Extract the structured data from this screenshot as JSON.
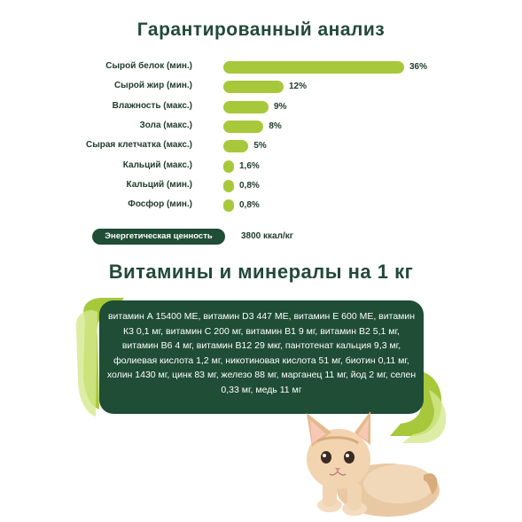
{
  "header": {
    "title": "Гарантированный анализ"
  },
  "chart_data": {
    "type": "bar",
    "orientation": "horizontal",
    "categories": [
      "Сырой белок (мин.)",
      "Сырой жир (мин.)",
      "Влажность (макс.)",
      "Зола (макс.)",
      "Сырая клетчатка (макс.)",
      "Кальций (макс.)",
      "Кальций (мин.)",
      "Фосфор (мин.)"
    ],
    "values": [
      36,
      12,
      9,
      8,
      5,
      1.6,
      0.8,
      0.8
    ],
    "value_labels": [
      "36%",
      "12%",
      "9%",
      "8%",
      "5%",
      "1,6%",
      "0,8%",
      "0,8%"
    ],
    "bar_color": "#a7c83a"
  },
  "energy": {
    "label": "Энергетическая ценность",
    "value": "3800 ккал/кг"
  },
  "vitamins": {
    "title": "Витамины и минералы на 1 кг",
    "text": "витамин А 15400 МЕ, витамин D3 447 МЕ, витамин Е 600 МЕ, витамин К3 0,1 мг, витамин С 200 мг, витамин В1 9 мг, витамин В2 5,1 мг, витамин В6 4 мг, витамин В12 29 мкг, пантотенат кальция 9,3 мг, фолиевая кислота 1,2 мг, никотиновая кислота 51 мг, биотин 0,11 мг, холин 1430 мг, цинк 83 мг, железо 88 мг, марганец 11 мг, йод 2 мг, селен 0,33 мг, медь 11 мг"
  },
  "colors": {
    "dark_green": "#1f4d35",
    "lime": "#a7c83a",
    "light_lime": "#d6e88f"
  },
  "image": {
    "icon": "kitten-icon"
  }
}
